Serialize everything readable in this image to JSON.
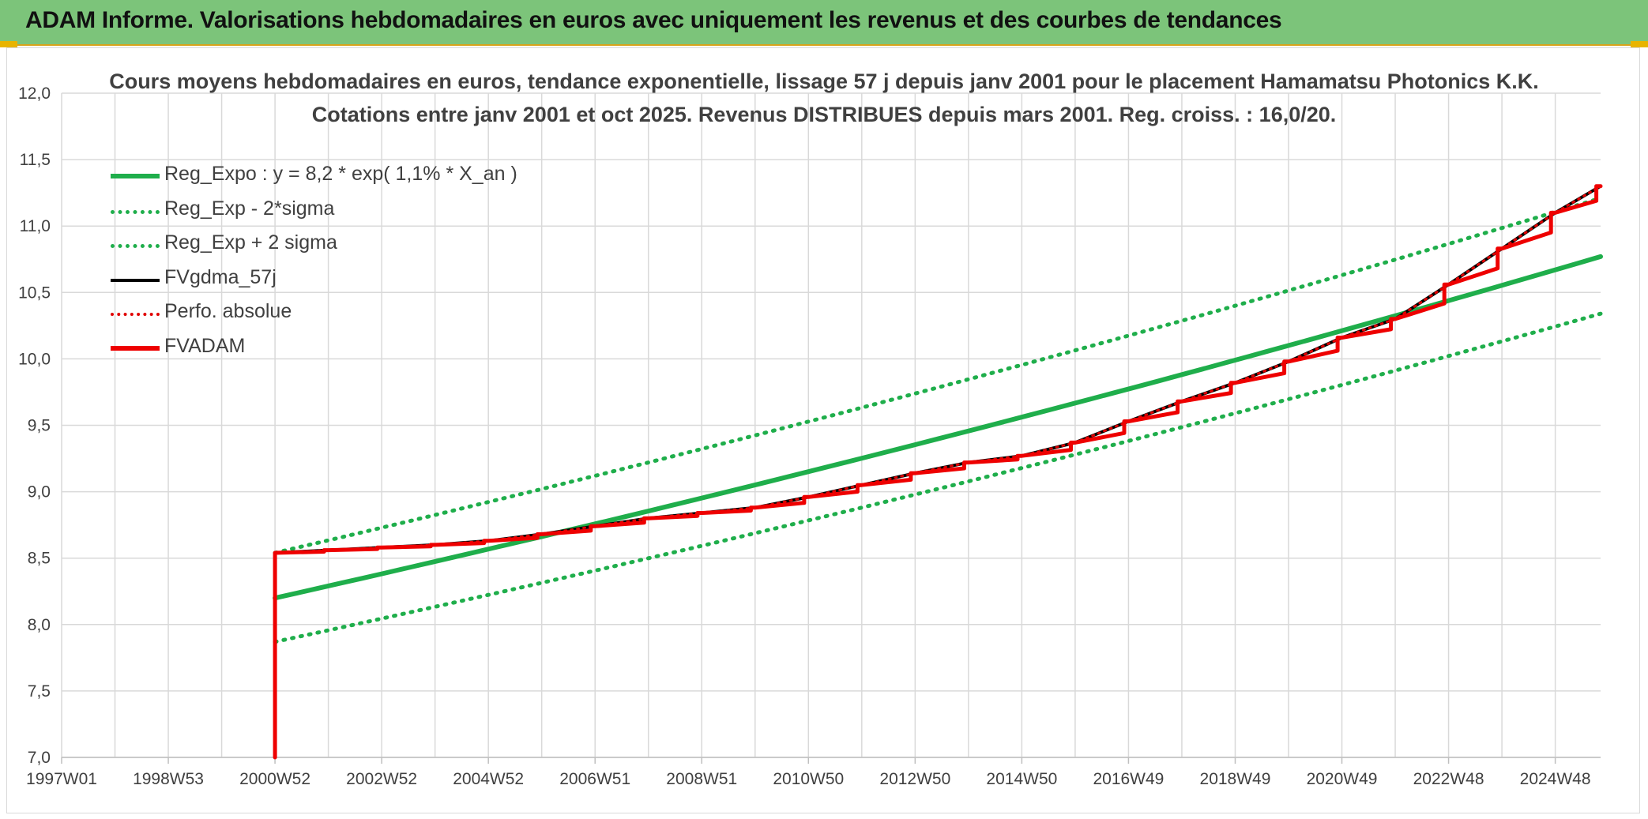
{
  "header": {
    "title": "ADAM Informe. Valorisations hebdomadaires en euros avec uniquement les revenus et des courbes de tendances",
    "bg_color": "#7cc47a",
    "accent_color": "#e8b400"
  },
  "chart_data": {
    "type": "line",
    "title_line1": "Cours moyens hebdomadaires en euros, tendance exponentielle, lissage 57 j depuis janv 2001 pour le placement Hamamatsu Photonics K.K.",
    "title_line2": "Cotations entre janv 2001 et oct 2025. Revenus DISTRIBUES depuis mars 2001. Reg. croiss. : 16,0/20.",
    "xlabel": "",
    "ylabel": "",
    "ylim": [
      7.0,
      12.0
    ],
    "xlim": [
      1997.0,
      2025.85
    ],
    "yticks": [
      "7,0",
      "7,5",
      "8,0",
      "8,5",
      "9,0",
      "9,5",
      "10,0",
      "10,5",
      "11,0",
      "11,5",
      "12,0"
    ],
    "xtick_labels": [
      "1997W01",
      "1998W53",
      "2000W52",
      "2002W52",
      "2004W52",
      "2006W51",
      "2008W51",
      "2010W50",
      "2012W50",
      "2014W50",
      "2016W49",
      "2018W49",
      "2020W49",
      "2022W48",
      "2024W48"
    ],
    "grid": true,
    "legend_position": "top-left",
    "legend": [
      {
        "label": "Reg_Expo : y = 8,2 * exp( 1,1% *  X_an )",
        "color": "#1fae4b",
        "style": "solid"
      },
      {
        "label": "Reg_Exp - 2*sigma",
        "color": "#1fae4b",
        "style": "dotted"
      },
      {
        "label": "Reg_Exp + 2 sigma",
        "color": "#1fae4b",
        "style": "dotted"
      },
      {
        "label": "FVgdma_57j",
        "color": "#000000",
        "style": "solid"
      },
      {
        "label": "Perfo. absolue",
        "color": "#e00000",
        "style": "dotted"
      },
      {
        "label": "FVADAM",
        "color": "#ee0000",
        "style": "solid"
      }
    ],
    "series": [
      {
        "name": "Reg_Expo : y = 8,2 * exp( 1,1% *  X_an )",
        "x": [
          2001.0,
          2025.85
        ],
        "y": [
          8.2,
          10.77
        ]
      },
      {
        "name": "Reg_Exp - 2*sigma",
        "x": [
          2001.0,
          2025.85
        ],
        "y": [
          7.87,
          10.34
        ]
      },
      {
        "name": "Reg_Exp + 2 sigma",
        "x": [
          2001.0,
          2025.85
        ],
        "y": [
          8.54,
          11.21
        ]
      },
      {
        "name": "FVgdma_57j",
        "x": [
          2001.0,
          2002.0,
          2003.0,
          2004.0,
          2005.0,
          2006.0,
          2007.0,
          2008.0,
          2009.0,
          2010.0,
          2011.0,
          2012.0,
          2013.0,
          2014.0,
          2015.0,
          2016.0,
          2017.0,
          2018.0,
          2019.0,
          2020.0,
          2021.0,
          2022.0,
          2023.0,
          2024.0,
          2025.0,
          2025.85
        ],
        "y": [
          8.54,
          8.56,
          8.58,
          8.6,
          8.63,
          8.68,
          8.74,
          8.8,
          8.84,
          8.88,
          8.96,
          9.05,
          9.14,
          9.22,
          9.27,
          9.37,
          9.53,
          9.68,
          9.82,
          9.98,
          10.16,
          10.3,
          10.56,
          10.83,
          11.1,
          11.3
        ]
      },
      {
        "name": "Perfo. absolue",
        "x": [
          2001.0,
          2002.0,
          2003.0,
          2004.0,
          2005.0,
          2006.0,
          2007.0,
          2008.0,
          2009.0,
          2010.0,
          2011.0,
          2012.0,
          2013.0,
          2014.0,
          2015.0,
          2016.0,
          2017.0,
          2018.0,
          2019.0,
          2020.0,
          2021.0,
          2022.0,
          2023.0,
          2024.0,
          2025.0,
          2025.85
        ],
        "y": [
          8.54,
          8.56,
          8.58,
          8.6,
          8.63,
          8.68,
          8.74,
          8.8,
          8.84,
          8.88,
          8.96,
          9.05,
          9.14,
          9.22,
          9.27,
          9.37,
          9.53,
          9.68,
          9.82,
          9.98,
          10.16,
          10.3,
          10.56,
          10.83,
          11.1,
          11.3
        ]
      },
      {
        "name": "FVADAM",
        "x": [
          2001.0,
          2001.0,
          2002.0,
          2003.0,
          2004.0,
          2005.0,
          2006.0,
          2007.0,
          2008.0,
          2009.0,
          2010.0,
          2011.0,
          2012.0,
          2013.0,
          2014.0,
          2015.0,
          2016.0,
          2017.0,
          2018.0,
          2019.0,
          2020.0,
          2021.0,
          2022.0,
          2023.0,
          2024.0,
          2025.0,
          2025.85
        ],
        "y": [
          7.0,
          8.54,
          8.56,
          8.58,
          8.6,
          8.63,
          8.68,
          8.74,
          8.8,
          8.84,
          8.88,
          8.96,
          9.05,
          9.14,
          9.22,
          9.27,
          9.37,
          9.53,
          9.68,
          9.82,
          9.98,
          10.16,
          10.3,
          10.56,
          10.83,
          11.1,
          11.3
        ]
      }
    ]
  }
}
